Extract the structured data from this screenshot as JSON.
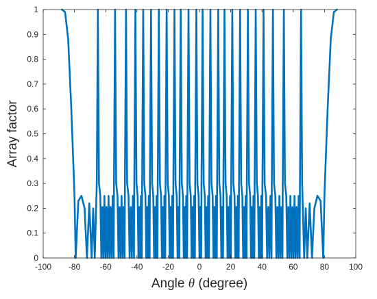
{
  "chart_data": {
    "type": "line",
    "title": "",
    "xlabel": "Angle θ (degree)",
    "xlabel_parts": {
      "prefix": "Angle ",
      "symbol": "θ",
      "suffix": " (degree)"
    },
    "ylabel": "Array factor",
    "xlim": [
      -100,
      100
    ],
    "ylim": [
      0,
      1
    ],
    "xticks": [
      -100,
      -80,
      -60,
      -40,
      -20,
      0,
      20,
      40,
      60,
      80,
      100
    ],
    "yticks": [
      0,
      0.1,
      0.2,
      0.3,
      0.4,
      0.5,
      0.6,
      0.7,
      0.8,
      0.9,
      1
    ],
    "xtick_labels": [
      "-100",
      "-80",
      "-60",
      "-40",
      "-20",
      "0",
      "20",
      "40",
      "60",
      "80",
      "100"
    ],
    "ytick_labels": [
      "0",
      "0.1",
      "0.2",
      "0.3",
      "0.4",
      "0.5",
      "0.6",
      "0.7",
      "0.8",
      "0.9",
      "1"
    ],
    "grid": false,
    "legend": "none",
    "series": [
      {
        "color": "#0072BD",
        "description_of_data": "sampled array factor vs angle",
        "x_range": [
          -90,
          90
        ],
        "main_lobe_peaks_deg": [
          -90,
          -65,
          -54,
          -47,
          -41,
          -36,
          -31,
          -26,
          -21,
          -16,
          -12,
          -7,
          -2,
          2,
          7,
          12,
          16,
          21,
          26,
          31,
          36,
          41,
          47,
          54,
          65,
          90
        ],
        "main_lobe_value": 1.0,
        "side_lobe_level": 0.25,
        "nulls_reaching_zero_deg": [
          -79,
          79
        ]
      }
    ]
  }
}
